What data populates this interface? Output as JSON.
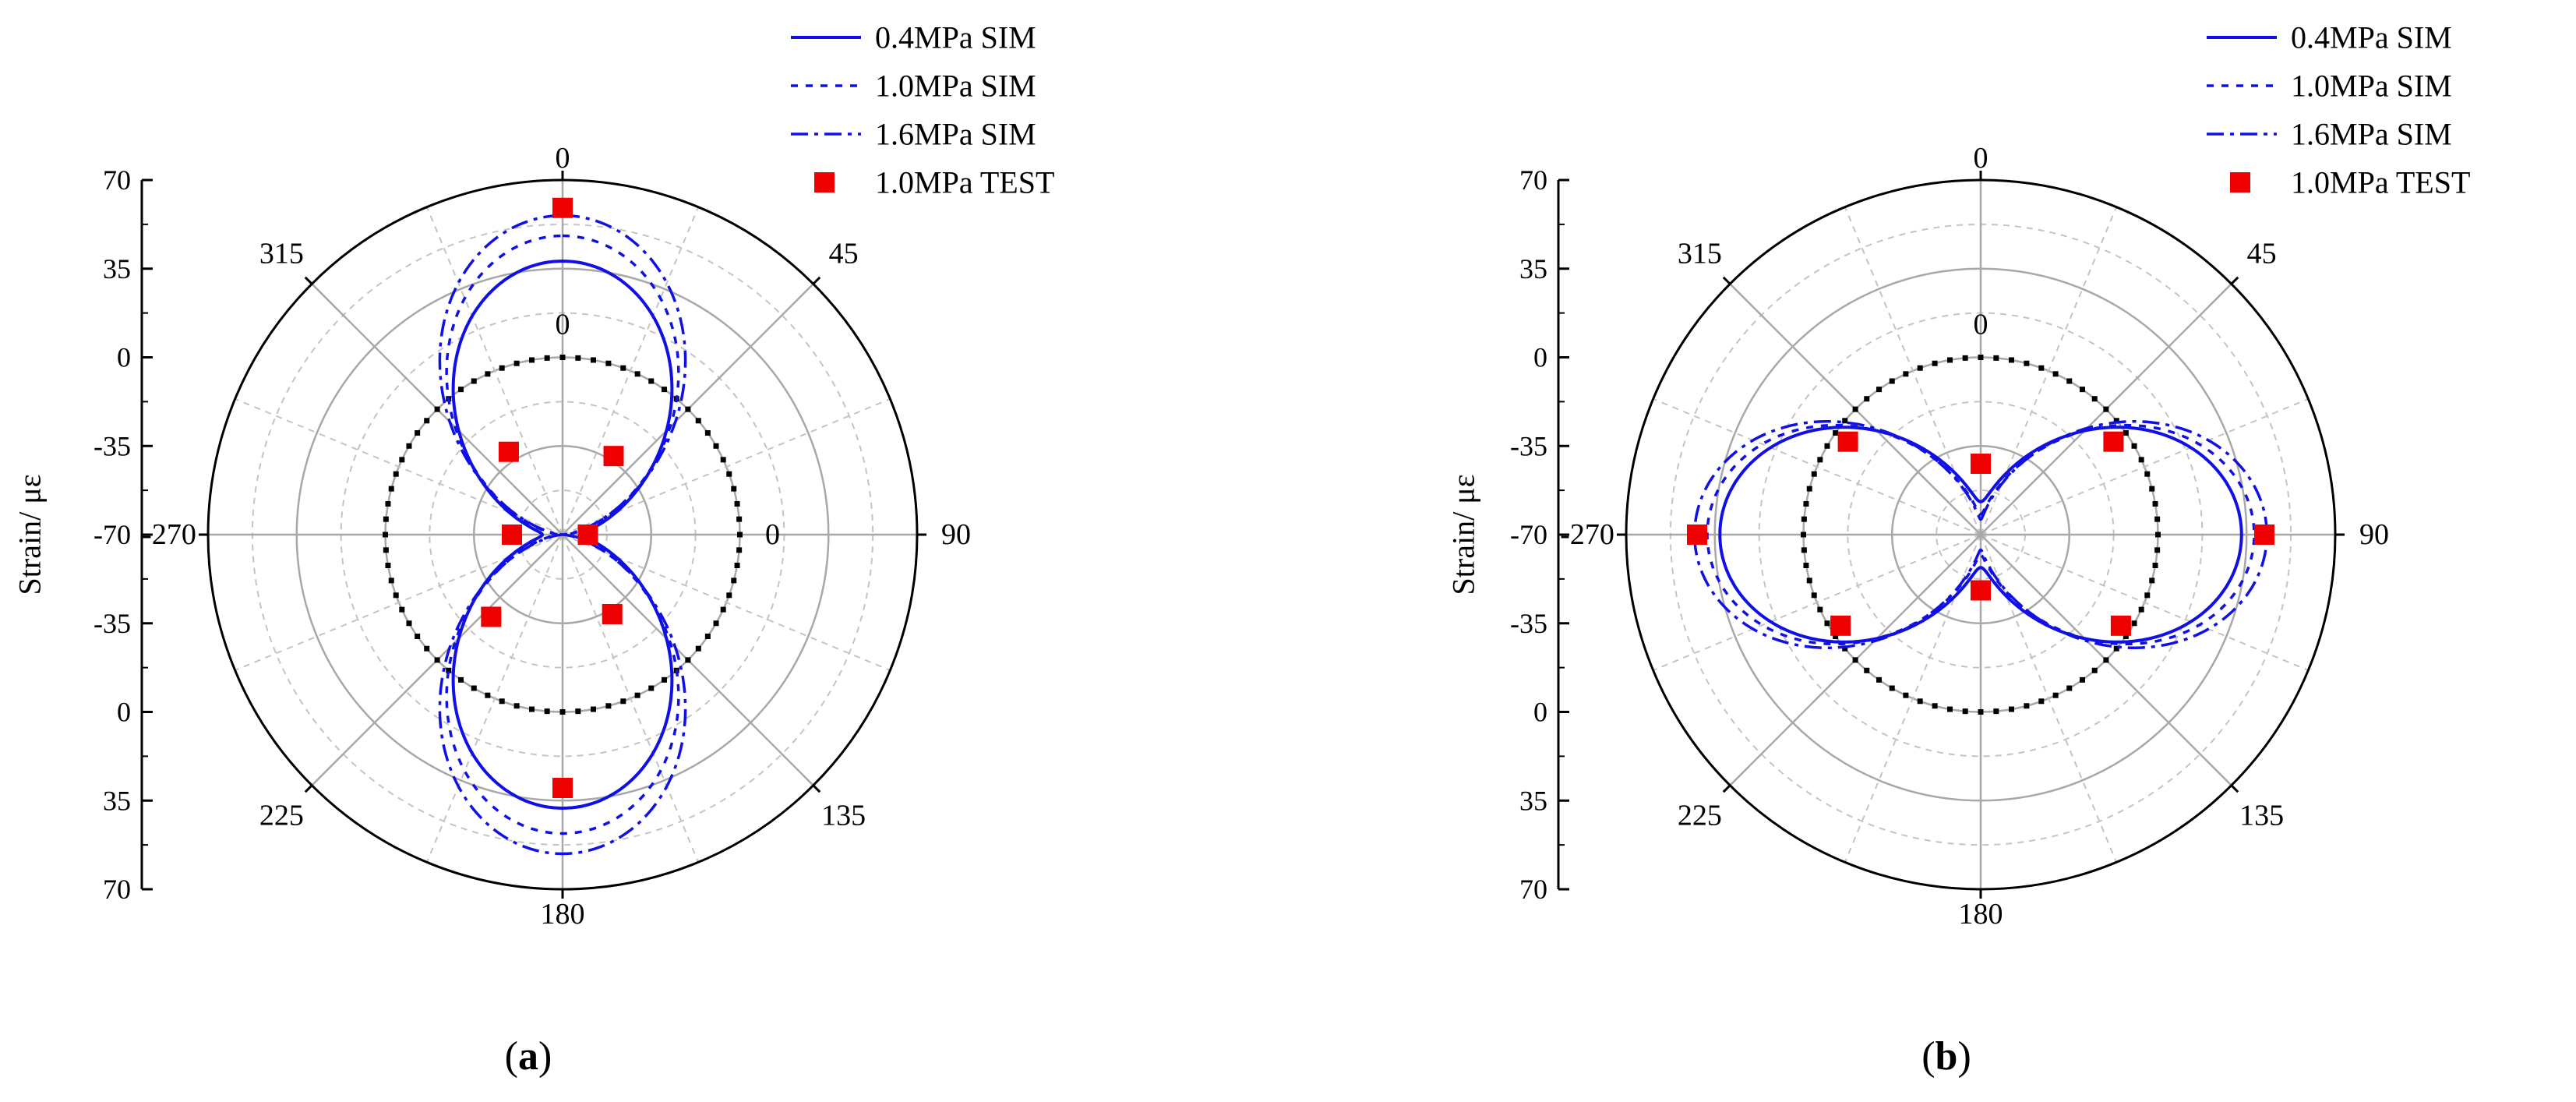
{
  "colors": {
    "sim": "#1010e6",
    "test": "#ee0000",
    "reference": "#000000",
    "grid_major": "#a8a8a8",
    "grid_minor": "#c4c4c4"
  },
  "chart_data": [
    {
      "type": "polar",
      "panel_label": "a",
      "ylabel": "Strain/ μɛ",
      "radial_ticks": [
        "70",
        "35",
        "0",
        "-35",
        "-70"
      ],
      "radial_range": [
        -70,
        70
      ],
      "angle_labels": [
        {
          "angle": 0,
          "text": "0"
        },
        {
          "angle": 45,
          "text": "45"
        },
        {
          "angle": 90,
          "text": "90"
        },
        {
          "angle": 135,
          "text": "135"
        },
        {
          "angle": 180,
          "text": "180"
        },
        {
          "angle": 225,
          "text": "225"
        },
        {
          "angle": 270,
          "text": "-270"
        },
        {
          "angle": 315,
          "text": "315"
        }
      ],
      "inner_labels": [
        {
          "angle": 0,
          "text": "0"
        },
        {
          "angle": 90,
          "text": "0"
        }
      ],
      "legend": [
        {
          "label": "0.4MPa SIM",
          "style": "solid"
        },
        {
          "label": "1.0MPa SIM",
          "style": "dash"
        },
        {
          "label": "1.6MPa SIM",
          "style": "dashdot"
        },
        {
          "label": "1.0MPa TEST",
          "style": "marker"
        }
      ],
      "reference_circle_value": 0,
      "series": [
        {
          "name": "0.4MPa SIM",
          "style": "solid",
          "mode": "cos2",
          "A": 38,
          "B": -62
        },
        {
          "name": "1.0MPa SIM",
          "style": "dash",
          "mode": "cos2",
          "A": 48,
          "B": -68
        },
        {
          "name": "1.6MPa SIM",
          "style": "dashdot",
          "mode": "cos2",
          "A": 56,
          "B": -70
        }
      ],
      "test_points": [
        {
          "angle": 0,
          "strain": 59
        },
        {
          "angle": 180,
          "strain": 30
        },
        {
          "angle": 90,
          "strain": -60
        },
        {
          "angle": 270,
          "strain": -50
        },
        {
          "angle": 33,
          "strain": -33
        },
        {
          "angle": 327,
          "strain": -31
        },
        {
          "angle": 148,
          "strain": -33
        },
        {
          "angle": 221,
          "strain": -27
        }
      ]
    },
    {
      "type": "polar",
      "panel_label": "b",
      "ylabel": "Strain/ μɛ",
      "radial_ticks": [
        "70",
        "35",
        "0",
        "-35",
        "-70"
      ],
      "radial_range": [
        -70,
        70
      ],
      "angle_labels": [
        {
          "angle": 0,
          "text": "0"
        },
        {
          "angle": 45,
          "text": "45"
        },
        {
          "angle": 90,
          "text": "90"
        },
        {
          "angle": 135,
          "text": "135"
        },
        {
          "angle": 180,
          "text": "180"
        },
        {
          "angle": 225,
          "text": "225"
        },
        {
          "angle": 270,
          "text": "-270"
        },
        {
          "angle": 315,
          "text": "315"
        }
      ],
      "inner_labels": [
        {
          "angle": 0,
          "text": "0"
        }
      ],
      "legend": [
        {
          "label": "0.4MPa SIM",
          "style": "solid"
        },
        {
          "label": "1.0MPa SIM",
          "style": "dash"
        },
        {
          "label": "1.6MPa SIM",
          "style": "dashdot"
        },
        {
          "label": "1.0MPa TEST",
          "style": "marker"
        }
      ],
      "reference_circle_value": 0,
      "series": [
        {
          "name": "0.4MPa SIM",
          "style": "solid",
          "mode": "sin2",
          "A": 33,
          "B": -57
        },
        {
          "name": "1.0MPa SIM",
          "style": "dash",
          "mode": "sin2",
          "A": 38,
          "B": -62
        },
        {
          "name": "1.6MPa SIM",
          "style": "dashdot",
          "mode": "sin2",
          "A": 43,
          "B": -64
        }
      ],
      "test_points": [
        {
          "angle": 0,
          "strain": -42
        },
        {
          "angle": 180,
          "strain": -48
        },
        {
          "angle": 90,
          "strain": 42
        },
        {
          "angle": 270,
          "strain": 42
        },
        {
          "angle": 55,
          "strain": -6
        },
        {
          "angle": 305,
          "strain": -6
        },
        {
          "angle": 123,
          "strain": -4
        },
        {
          "angle": 237,
          "strain": -4
        }
      ]
    }
  ]
}
